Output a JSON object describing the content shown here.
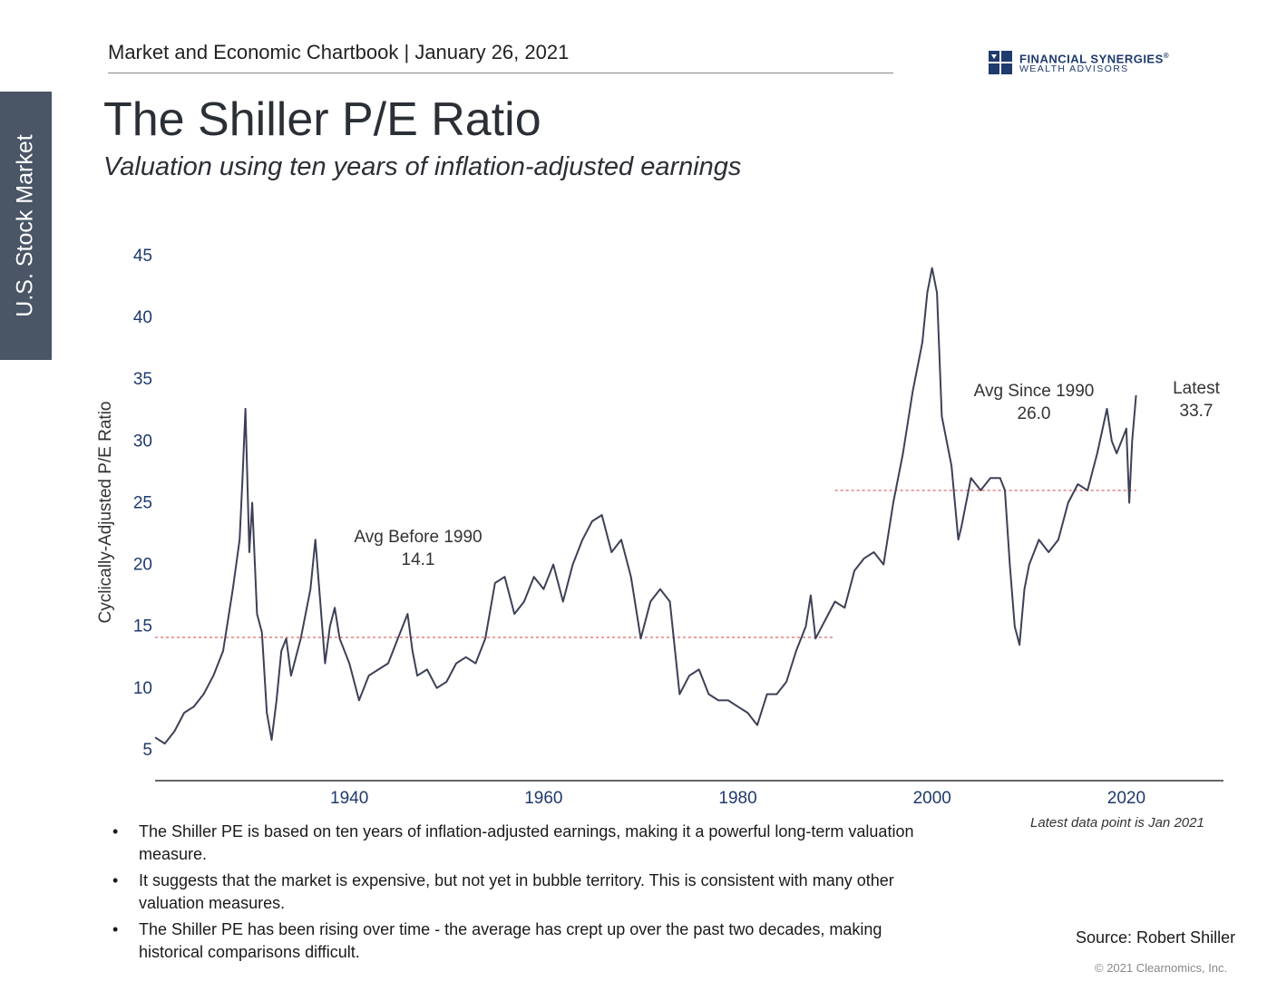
{
  "side_tab": {
    "label": "U.S. Stock Market"
  },
  "header": {
    "text": "Market and Economic Chartbook | January 26, 2021"
  },
  "logo": {
    "name": "FINANCIAL SYNERGIES",
    "registered": "®",
    "subline": "WEALTH ADVISORS",
    "color": "#1f3a6d"
  },
  "title": "The Shiller P/E Ratio",
  "subtitle": "Valuation using ten years of inflation-adjusted earnings",
  "chart_data": {
    "type": "line",
    "title": "The Shiller P/E Ratio",
    "xlabel": "",
    "ylabel": "Cyclically-Adjusted P/E Ratio",
    "xlim": [
      1920,
      2030
    ],
    "ylim": [
      2.5,
      45
    ],
    "yticks": [
      5,
      10,
      15,
      20,
      25,
      30,
      35,
      40,
      45
    ],
    "xticks": [
      1940,
      1960,
      1980,
      2000,
      2020
    ],
    "line_color": "#3d4157",
    "avg_color": "#e06666",
    "series": [
      {
        "name": "Shiller P/E",
        "x": [
          1920.0,
          1921.0,
          1922.0,
          1923.0,
          1924.0,
          1925.0,
          1926.0,
          1927.0,
          1928.0,
          1928.7,
          1929.0,
          1929.3,
          1929.7,
          1930.0,
          1930.5,
          1931.0,
          1931.5,
          1932.0,
          1932.5,
          1933.0,
          1933.5,
          1934.0,
          1935.0,
          1936.0,
          1936.5,
          1937.0,
          1937.5,
          1938.0,
          1938.5,
          1939.0,
          1940.0,
          1941.0,
          1942.0,
          1943.0,
          1944.0,
          1945.0,
          1946.0,
          1946.5,
          1947.0,
          1948.0,
          1949.0,
          1950.0,
          1951.0,
          1952.0,
          1953.0,
          1954.0,
          1955.0,
          1956.0,
          1957.0,
          1958.0,
          1959.0,
          1960.0,
          1961.0,
          1962.0,
          1963.0,
          1964.0,
          1965.0,
          1966.0,
          1967.0,
          1968.0,
          1969.0,
          1970.0,
          1971.0,
          1972.0,
          1973.0,
          1974.0,
          1975.0,
          1976.0,
          1977.0,
          1978.0,
          1979.0,
          1980.0,
          1981.0,
          1982.0,
          1983.0,
          1984.0,
          1985.0,
          1986.0,
          1987.0,
          1987.5,
          1988.0,
          1989.0,
          1990.0,
          1991.0,
          1992.0,
          1993.0,
          1994.0,
          1995.0,
          1996.0,
          1997.0,
          1998.0,
          1999.0,
          1999.5,
          2000.0,
          2000.5,
          2001.0,
          2002.0,
          2002.7,
          2003.0,
          2004.0,
          2005.0,
          2006.0,
          2007.0,
          2007.5,
          2008.0,
          2008.5,
          2009.0,
          2009.5,
          2010.0,
          2011.0,
          2012.0,
          2013.0,
          2014.0,
          2015.0,
          2016.0,
          2017.0,
          2018.0,
          2018.5,
          2019.0,
          2019.5,
          2020.0,
          2020.3,
          2020.6,
          2021.0
        ],
        "y": [
          6.0,
          5.5,
          6.5,
          8.0,
          8.5,
          9.5,
          11.0,
          13.0,
          18.0,
          22.0,
          27.0,
          32.6,
          21.0,
          25.0,
          16.0,
          14.5,
          8.0,
          5.8,
          9.0,
          13.0,
          14.0,
          11.0,
          14.0,
          18.0,
          22.0,
          17.0,
          12.0,
          15.0,
          16.5,
          14.0,
          12.0,
          9.0,
          11.0,
          11.5,
          12.0,
          14.0,
          16.0,
          13.0,
          11.0,
          11.5,
          10.0,
          10.5,
          12.0,
          12.5,
          12.0,
          14.0,
          18.5,
          19.0,
          16.0,
          17.0,
          19.0,
          18.0,
          20.0,
          17.0,
          20.0,
          22.0,
          23.5,
          24.0,
          21.0,
          22.0,
          19.0,
          14.0,
          17.0,
          18.0,
          17.0,
          9.5,
          11.0,
          11.5,
          9.5,
          9.0,
          9.0,
          8.5,
          8.0,
          7.0,
          9.5,
          9.5,
          10.5,
          13.0,
          15.0,
          17.5,
          14.0,
          15.5,
          17.0,
          16.5,
          19.5,
          20.5,
          21.0,
          20.0,
          25.0,
          29.0,
          34.0,
          38.0,
          42.0,
          44.0,
          42.0,
          32.0,
          28.0,
          22.0,
          23.0,
          27.0,
          26.0,
          27.0,
          27.0,
          26.0,
          20.0,
          15.0,
          13.5,
          18.0,
          20.0,
          22.0,
          21.0,
          22.0,
          25.0,
          26.5,
          26.0,
          29.0,
          32.6,
          30.0,
          29.0,
          30.0,
          31.0,
          25.0,
          30.0,
          33.7
        ]
      }
    ],
    "averages": [
      {
        "label": "Avg Before 1990",
        "value": 14.1,
        "x_start": 1920,
        "x_end": 1990
      },
      {
        "label": "Avg Since 1990",
        "value": 26.0,
        "x_start": 1990,
        "x_end": 2021
      }
    ],
    "annotations": [
      {
        "line1": "Avg Before 1990",
        "line2": "14.1"
      },
      {
        "line1": "Avg Since 1990",
        "line2": "26.0"
      },
      {
        "line1": "Latest",
        "line2": "33.7"
      }
    ]
  },
  "footnote": "Latest data point is Jan 2021",
  "bullets": [
    "The Shiller PE is based on ten years of inflation-adjusted earnings, making it a powerful long-term valuation measure.",
    "It suggests that the market is expensive, but not yet in bubble territory. This is consistent with many other valuation measures.",
    "The Shiller PE has been rising over time - the average has crept up over the past two decades, making historical comparisons difficult."
  ],
  "source": "Source: Robert Shiller",
  "copyright": "© 2021 Clearnomics, Inc."
}
